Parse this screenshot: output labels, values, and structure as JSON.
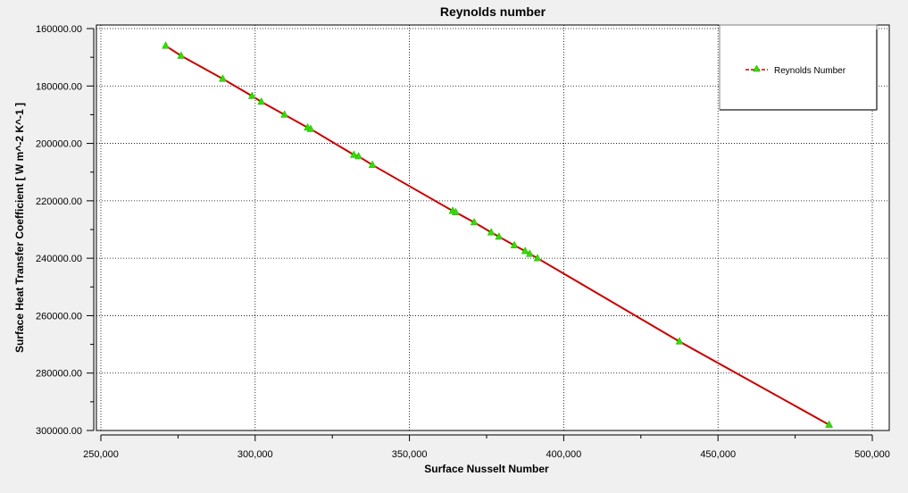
{
  "chart_data": {
    "type": "line",
    "title": "Reynolds  number",
    "xlabel": "Surface Nusselt Number",
    "ylabel": "Surface Heat Transfer Coefficient [ W m^-2 K^-1 ]",
    "xlim": [
      250000,
      500000
    ],
    "ylim": [
      160000,
      300000
    ],
    "y_inverted": true,
    "grid": true,
    "legend_position": "top-right",
    "x_ticks": [
      250000,
      300000,
      350000,
      400000,
      450000,
      500000
    ],
    "x_tick_labels": [
      "250,000",
      "300,000",
      "350,000",
      "400,000",
      "450,000",
      "500,000"
    ],
    "y_ticks": [
      160000,
      180000,
      200000,
      220000,
      240000,
      260000,
      280000,
      300000
    ],
    "y_tick_labels": [
      "160000.00",
      "180000.00",
      "200000.00",
      "220000.00",
      "240000.00",
      "260000.00",
      "280000.00",
      "300000.00"
    ],
    "series": [
      {
        "name": "Reynolds Number",
        "line_color": "#cc0000",
        "marker_color": "#33dd00",
        "marker": "triangle",
        "line_style": "dashed",
        "x": [
          271000,
          276000,
          289500,
          299000,
          302000,
          309500,
          317000,
          318000,
          332000,
          333500,
          338000,
          364000,
          365000,
          371000,
          376500,
          379000,
          384000,
          387500,
          389000,
          391500,
          437500,
          486000
        ],
        "y": [
          166000,
          169500,
          177500,
          183500,
          185500,
          190000,
          194500,
          195000,
          204000,
          204500,
          207500,
          223500,
          224000,
          227500,
          231000,
          232500,
          235500,
          237500,
          238500,
          240000,
          269000,
          298000
        ]
      }
    ]
  }
}
